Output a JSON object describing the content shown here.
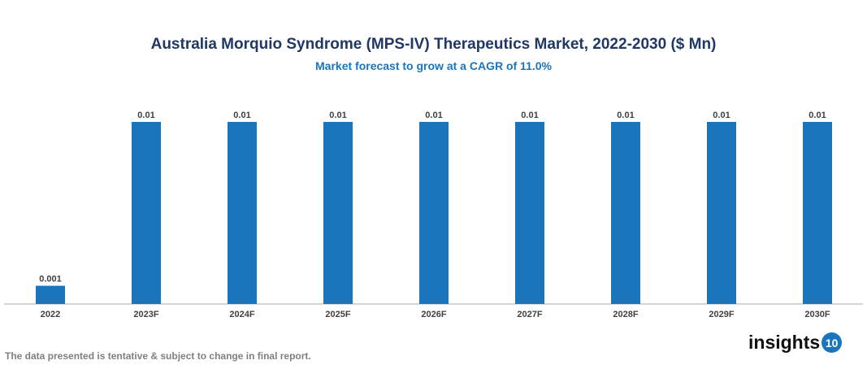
{
  "chart_data": {
    "type": "bar",
    "title": "Australia Morquio Syndrome (MPS-IV) Therapeutics Market, 2022-2030 ($ Mn)",
    "subtitle": "Market forecast to grow at a CAGR of 11.0%",
    "categories": [
      "2022",
      "2023F",
      "2024F",
      "2025F",
      "2026F",
      "2027F",
      "2028F",
      "2029F",
      "2030F"
    ],
    "values": [
      0.001,
      0.01,
      0.01,
      0.01,
      0.01,
      0.01,
      0.01,
      0.01,
      0.01
    ],
    "data_labels": [
      "0.001",
      "0.01",
      "0.01",
      "0.01",
      "0.01",
      "0.01",
      "0.01",
      "0.01",
      "0.01"
    ],
    "xlabel": "",
    "ylabel": "",
    "ylim": [
      0,
      0.01
    ],
    "grid": false,
    "bar_color": "#1a75bc"
  },
  "footnote": "The data presented is tentative & subject to change in final report.",
  "logo": {
    "text": "insights",
    "badge": "10"
  }
}
